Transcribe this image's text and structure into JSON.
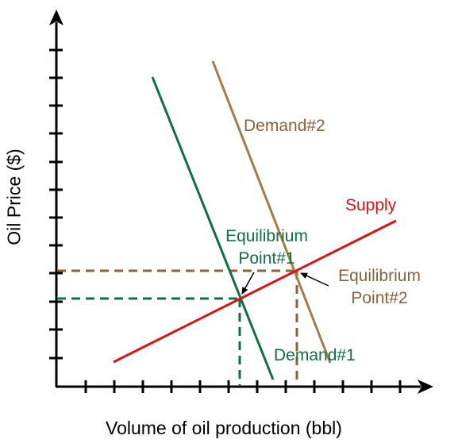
{
  "axes": {
    "y_label": "Oil Price ($)",
    "x_label": "Volume of oil production (bbl)",
    "axis_color": "#000000"
  },
  "curves": {
    "supply": {
      "label": "Supply",
      "color": "#dd1111"
    },
    "demand1": {
      "label": "Demand#1",
      "color": "#0f7040"
    },
    "demand2": {
      "label": "Demand#2",
      "color": "#a67c45"
    }
  },
  "equilibrium": {
    "point1": {
      "line1": "Equilibrium",
      "line2": "Point#1",
      "color": "#0f7040"
    },
    "point2": {
      "line1": "Equilibrium",
      "line2": "Point#2",
      "color": "#8c6239"
    }
  }
}
